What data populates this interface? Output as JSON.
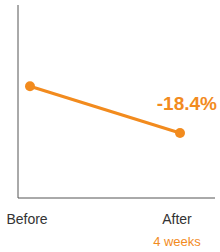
{
  "chart_data": {
    "type": "line",
    "categories": [
      "Before",
      "After"
    ],
    "category_notes": [
      null,
      "4 weeks"
    ],
    "values": [
      100,
      81.6
    ],
    "color": "#f28b1e",
    "ylim": [
      56,
      132
    ],
    "annotation": "-18.4%",
    "marker": "circle",
    "line_style": "solid",
    "tick_labels": "x",
    "grid": false
  }
}
